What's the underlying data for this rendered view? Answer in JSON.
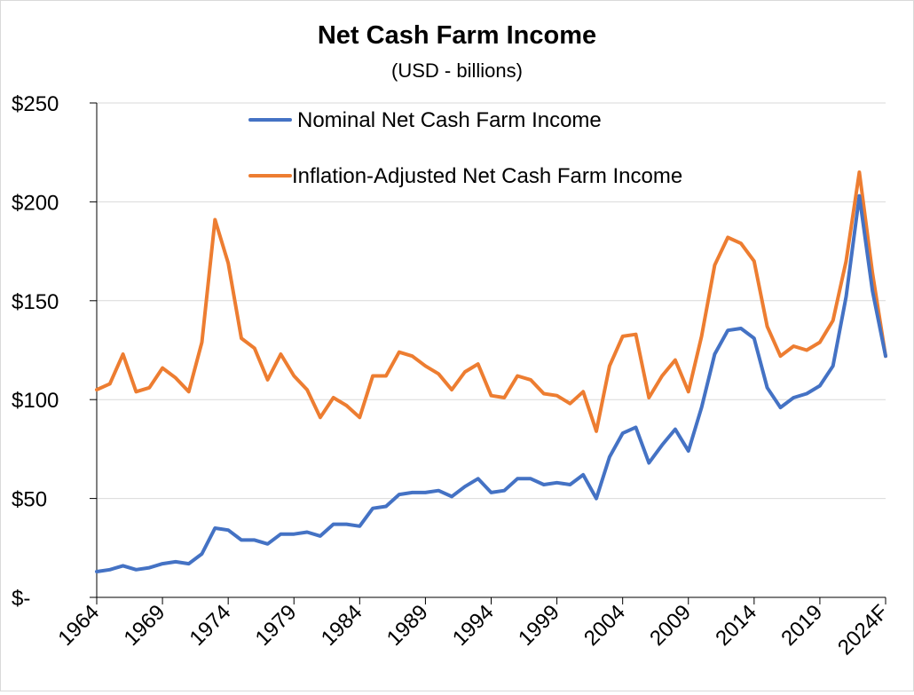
{
  "chart_data": {
    "type": "line",
    "title": "Net Cash Farm Income",
    "subtitle": "(USD - billions)",
    "xlabel": "",
    "ylabel": "",
    "ylim": [
      0,
      250
    ],
    "y_ticks": [
      0,
      50,
      100,
      150,
      200,
      250
    ],
    "y_tick_labels": [
      "$-",
      "$50",
      "$100",
      "$150",
      "$200",
      "$250"
    ],
    "x_ticks": [
      1964,
      1969,
      1974,
      1979,
      1984,
      1989,
      1994,
      1999,
      2004,
      2009,
      2014,
      2019,
      2024
    ],
    "x_tick_labels": [
      "1964",
      "1969",
      "1974",
      "1979",
      "1984",
      "1989",
      "1994",
      "1999",
      "2004",
      "2009",
      "2014",
      "2019",
      "2024F"
    ],
    "grid": "horizontal",
    "legend_placement": "top-center",
    "x": [
      1964,
      1965,
      1966,
      1967,
      1968,
      1969,
      1970,
      1971,
      1972,
      1973,
      1974,
      1975,
      1976,
      1977,
      1978,
      1979,
      1980,
      1981,
      1982,
      1983,
      1984,
      1985,
      1986,
      1987,
      1988,
      1989,
      1990,
      1991,
      1992,
      1993,
      1994,
      1995,
      1996,
      1997,
      1998,
      1999,
      2000,
      2001,
      2002,
      2003,
      2004,
      2005,
      2006,
      2007,
      2008,
      2009,
      2010,
      2011,
      2012,
      2013,
      2014,
      2015,
      2016,
      2017,
      2018,
      2019,
      2020,
      2021,
      2022,
      2023,
      2024
    ],
    "series": [
      {
        "name": "Nominal Net Cash Farm Income",
        "color": "#4472c4",
        "values": [
          13,
          14,
          16,
          14,
          15,
          17,
          18,
          17,
          22,
          35,
          34,
          29,
          29,
          27,
          32,
          32,
          33,
          31,
          37,
          37,
          36,
          45,
          46,
          52,
          53,
          53,
          54,
          51,
          56,
          60,
          53,
          54,
          60,
          60,
          57,
          58,
          57,
          62,
          50,
          71,
          83,
          86,
          68,
          77,
          85,
          74,
          96,
          123,
          135,
          136,
          131,
          106,
          96,
          101,
          103,
          107,
          117,
          152,
          203,
          155,
          122
        ]
      },
      {
        "name": "Inflation-Adjusted Net Cash Farm Income",
        "color": "#ed7d31",
        "values": [
          105,
          108,
          123,
          104,
          106,
          116,
          111,
          104,
          129,
          191,
          169,
          131,
          126,
          110,
          123,
          112,
          105,
          91,
          101,
          97,
          91,
          112,
          112,
          124,
          122,
          117,
          113,
          105,
          114,
          118,
          102,
          101,
          112,
          110,
          103,
          102,
          98,
          104,
          84,
          117,
          132,
          133,
          101,
          112,
          120,
          104,
          132,
          168,
          182,
          179,
          170,
          137,
          122,
          127,
          125,
          129,
          140,
          170,
          215,
          164,
          122
        ]
      }
    ]
  }
}
